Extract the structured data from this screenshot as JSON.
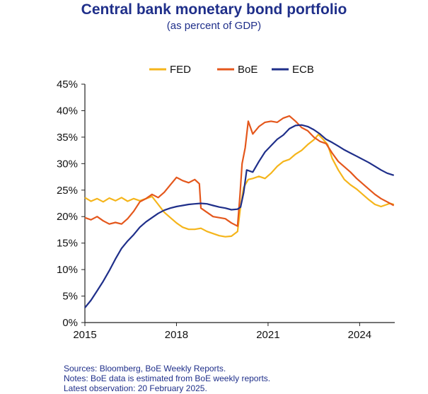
{
  "header": {
    "title": "Central bank monetary bond portfolio",
    "subtitle": "(as percent of GDP)"
  },
  "footer": {
    "sources": "Sources: Bloomberg, BoE Weekly Reports.",
    "notes": "Notes: BoE data is estimated from BoE weekly reports.",
    "latest": "Latest observation: 20 February 2025."
  },
  "chart_data": {
    "type": "line",
    "title": "Central bank monetary bond portfolio",
    "subtitle": "(as percent of GDP)",
    "xlabel": "",
    "ylabel": "",
    "xlim": [
      2015.0,
      2025.15
    ],
    "ylim": [
      0,
      45
    ],
    "x_ticks": [
      2015,
      2018,
      2021,
      2024
    ],
    "x_tick_labels": [
      "2015",
      "2018",
      "2021",
      "2024"
    ],
    "y_ticks": [
      0,
      5,
      10,
      15,
      20,
      25,
      30,
      35,
      40,
      45
    ],
    "y_tick_labels": [
      "0%",
      "5%",
      "10%",
      "15%",
      "20%",
      "25%",
      "30%",
      "35%",
      "40%",
      "45%"
    ],
    "grid": false,
    "legend_position": "top",
    "series": [
      {
        "name": "FED",
        "color": "#f5b51b",
        "points": [
          [
            2015.0,
            23.6
          ],
          [
            2015.2,
            22.9
          ],
          [
            2015.4,
            23.4
          ],
          [
            2015.6,
            22.8
          ],
          [
            2015.8,
            23.5
          ],
          [
            2016.0,
            23.0
          ],
          [
            2016.2,
            23.6
          ],
          [
            2016.4,
            22.9
          ],
          [
            2016.6,
            23.4
          ],
          [
            2016.8,
            23.0
          ],
          [
            2017.0,
            23.4
          ],
          [
            2017.2,
            23.8
          ],
          [
            2017.4,
            22.3
          ],
          [
            2017.6,
            20.8
          ],
          [
            2017.8,
            19.8
          ],
          [
            2018.0,
            18.8
          ],
          [
            2018.2,
            18.0
          ],
          [
            2018.4,
            17.6
          ],
          [
            2018.6,
            17.6
          ],
          [
            2018.8,
            17.8
          ],
          [
            2019.0,
            17.2
          ],
          [
            2019.2,
            16.8
          ],
          [
            2019.4,
            16.4
          ],
          [
            2019.6,
            16.2
          ],
          [
            2019.8,
            16.3
          ],
          [
            2020.0,
            17.2
          ],
          [
            2020.1,
            22.0
          ],
          [
            2020.2,
            25.5
          ],
          [
            2020.35,
            27.0
          ],
          [
            2020.5,
            27.2
          ],
          [
            2020.7,
            27.6
          ],
          [
            2020.9,
            27.2
          ],
          [
            2021.1,
            28.2
          ],
          [
            2021.3,
            29.5
          ],
          [
            2021.5,
            30.4
          ],
          [
            2021.7,
            30.8
          ],
          [
            2021.9,
            31.8
          ],
          [
            2022.1,
            32.5
          ],
          [
            2022.3,
            33.6
          ],
          [
            2022.5,
            34.5
          ],
          [
            2022.65,
            35.5
          ],
          [
            2022.8,
            34.6
          ],
          [
            2022.95,
            33.6
          ],
          [
            2023.1,
            31.0
          ],
          [
            2023.3,
            28.8
          ],
          [
            2023.5,
            27.0
          ],
          [
            2023.7,
            26.0
          ],
          [
            2023.9,
            25.2
          ],
          [
            2024.1,
            24.2
          ],
          [
            2024.3,
            23.2
          ],
          [
            2024.5,
            22.3
          ],
          [
            2024.7,
            21.9
          ],
          [
            2024.9,
            22.3
          ],
          [
            2025.0,
            22.5
          ],
          [
            2025.12,
            22.3
          ]
        ]
      },
      {
        "name": "BoE",
        "color": "#e4571c",
        "points": [
          [
            2015.0,
            19.8
          ],
          [
            2015.2,
            19.4
          ],
          [
            2015.4,
            20.0
          ],
          [
            2015.6,
            19.2
          ],
          [
            2015.8,
            18.6
          ],
          [
            2016.0,
            18.9
          ],
          [
            2016.2,
            18.6
          ],
          [
            2016.4,
            19.6
          ],
          [
            2016.6,
            21.0
          ],
          [
            2016.8,
            22.8
          ],
          [
            2017.0,
            23.4
          ],
          [
            2017.2,
            24.2
          ],
          [
            2017.4,
            23.6
          ],
          [
            2017.6,
            24.6
          ],
          [
            2017.8,
            26.0
          ],
          [
            2018.0,
            27.4
          ],
          [
            2018.2,
            26.8
          ],
          [
            2018.4,
            26.4
          ],
          [
            2018.6,
            27.0
          ],
          [
            2018.75,
            26.2
          ],
          [
            2018.8,
            21.6
          ],
          [
            2019.0,
            20.8
          ],
          [
            2019.2,
            20.0
          ],
          [
            2019.4,
            19.8
          ],
          [
            2019.6,
            19.6
          ],
          [
            2019.8,
            18.8
          ],
          [
            2020.0,
            18.2
          ],
          [
            2020.08,
            24.0
          ],
          [
            2020.15,
            30.0
          ],
          [
            2020.25,
            33.0
          ],
          [
            2020.35,
            38.0
          ],
          [
            2020.5,
            35.6
          ],
          [
            2020.7,
            37.0
          ],
          [
            2020.9,
            37.8
          ],
          [
            2021.1,
            38.0
          ],
          [
            2021.3,
            37.8
          ],
          [
            2021.5,
            38.6
          ],
          [
            2021.7,
            39.0
          ],
          [
            2021.9,
            38.0
          ],
          [
            2022.1,
            36.8
          ],
          [
            2022.3,
            36.2
          ],
          [
            2022.5,
            35.0
          ],
          [
            2022.7,
            34.2
          ],
          [
            2022.9,
            33.8
          ],
          [
            2023.1,
            32.0
          ],
          [
            2023.3,
            30.4
          ],
          [
            2023.5,
            29.4
          ],
          [
            2023.7,
            28.4
          ],
          [
            2023.9,
            27.2
          ],
          [
            2024.1,
            26.2
          ],
          [
            2024.3,
            25.2
          ],
          [
            2024.5,
            24.2
          ],
          [
            2024.7,
            23.4
          ],
          [
            2024.9,
            22.8
          ],
          [
            2025.12,
            22.1
          ]
        ]
      },
      {
        "name": "ECB",
        "color": "#1f2f8a",
        "points": [
          [
            2015.0,
            2.8
          ],
          [
            2015.2,
            4.2
          ],
          [
            2015.4,
            6.0
          ],
          [
            2015.6,
            7.8
          ],
          [
            2015.8,
            9.8
          ],
          [
            2016.0,
            12.0
          ],
          [
            2016.2,
            14.0
          ],
          [
            2016.4,
            15.4
          ],
          [
            2016.6,
            16.6
          ],
          [
            2016.8,
            18.0
          ],
          [
            2017.0,
            19.0
          ],
          [
            2017.2,
            19.8
          ],
          [
            2017.4,
            20.6
          ],
          [
            2017.6,
            21.2
          ],
          [
            2017.8,
            21.6
          ],
          [
            2018.0,
            21.9
          ],
          [
            2018.2,
            22.1
          ],
          [
            2018.4,
            22.3
          ],
          [
            2018.6,
            22.4
          ],
          [
            2018.8,
            22.5
          ],
          [
            2019.0,
            22.4
          ],
          [
            2019.2,
            22.1
          ],
          [
            2019.4,
            21.8
          ],
          [
            2019.6,
            21.6
          ],
          [
            2019.8,
            21.3
          ],
          [
            2020.0,
            21.4
          ],
          [
            2020.1,
            21.8
          ],
          [
            2020.2,
            24.5
          ],
          [
            2020.3,
            28.8
          ],
          [
            2020.5,
            28.4
          ],
          [
            2020.7,
            30.4
          ],
          [
            2020.9,
            32.2
          ],
          [
            2021.1,
            33.4
          ],
          [
            2021.3,
            34.6
          ],
          [
            2021.5,
            35.4
          ],
          [
            2021.7,
            36.6
          ],
          [
            2021.9,
            37.2
          ],
          [
            2022.1,
            37.3
          ],
          [
            2022.3,
            37.0
          ],
          [
            2022.5,
            36.4
          ],
          [
            2022.7,
            35.6
          ],
          [
            2022.9,
            34.6
          ],
          [
            2023.1,
            34.0
          ],
          [
            2023.3,
            33.3
          ],
          [
            2023.5,
            32.6
          ],
          [
            2023.7,
            32.0
          ],
          [
            2023.9,
            31.4
          ],
          [
            2024.1,
            30.8
          ],
          [
            2024.3,
            30.2
          ],
          [
            2024.5,
            29.5
          ],
          [
            2024.7,
            28.8
          ],
          [
            2024.9,
            28.2
          ],
          [
            2025.12,
            27.8
          ]
        ]
      }
    ]
  }
}
